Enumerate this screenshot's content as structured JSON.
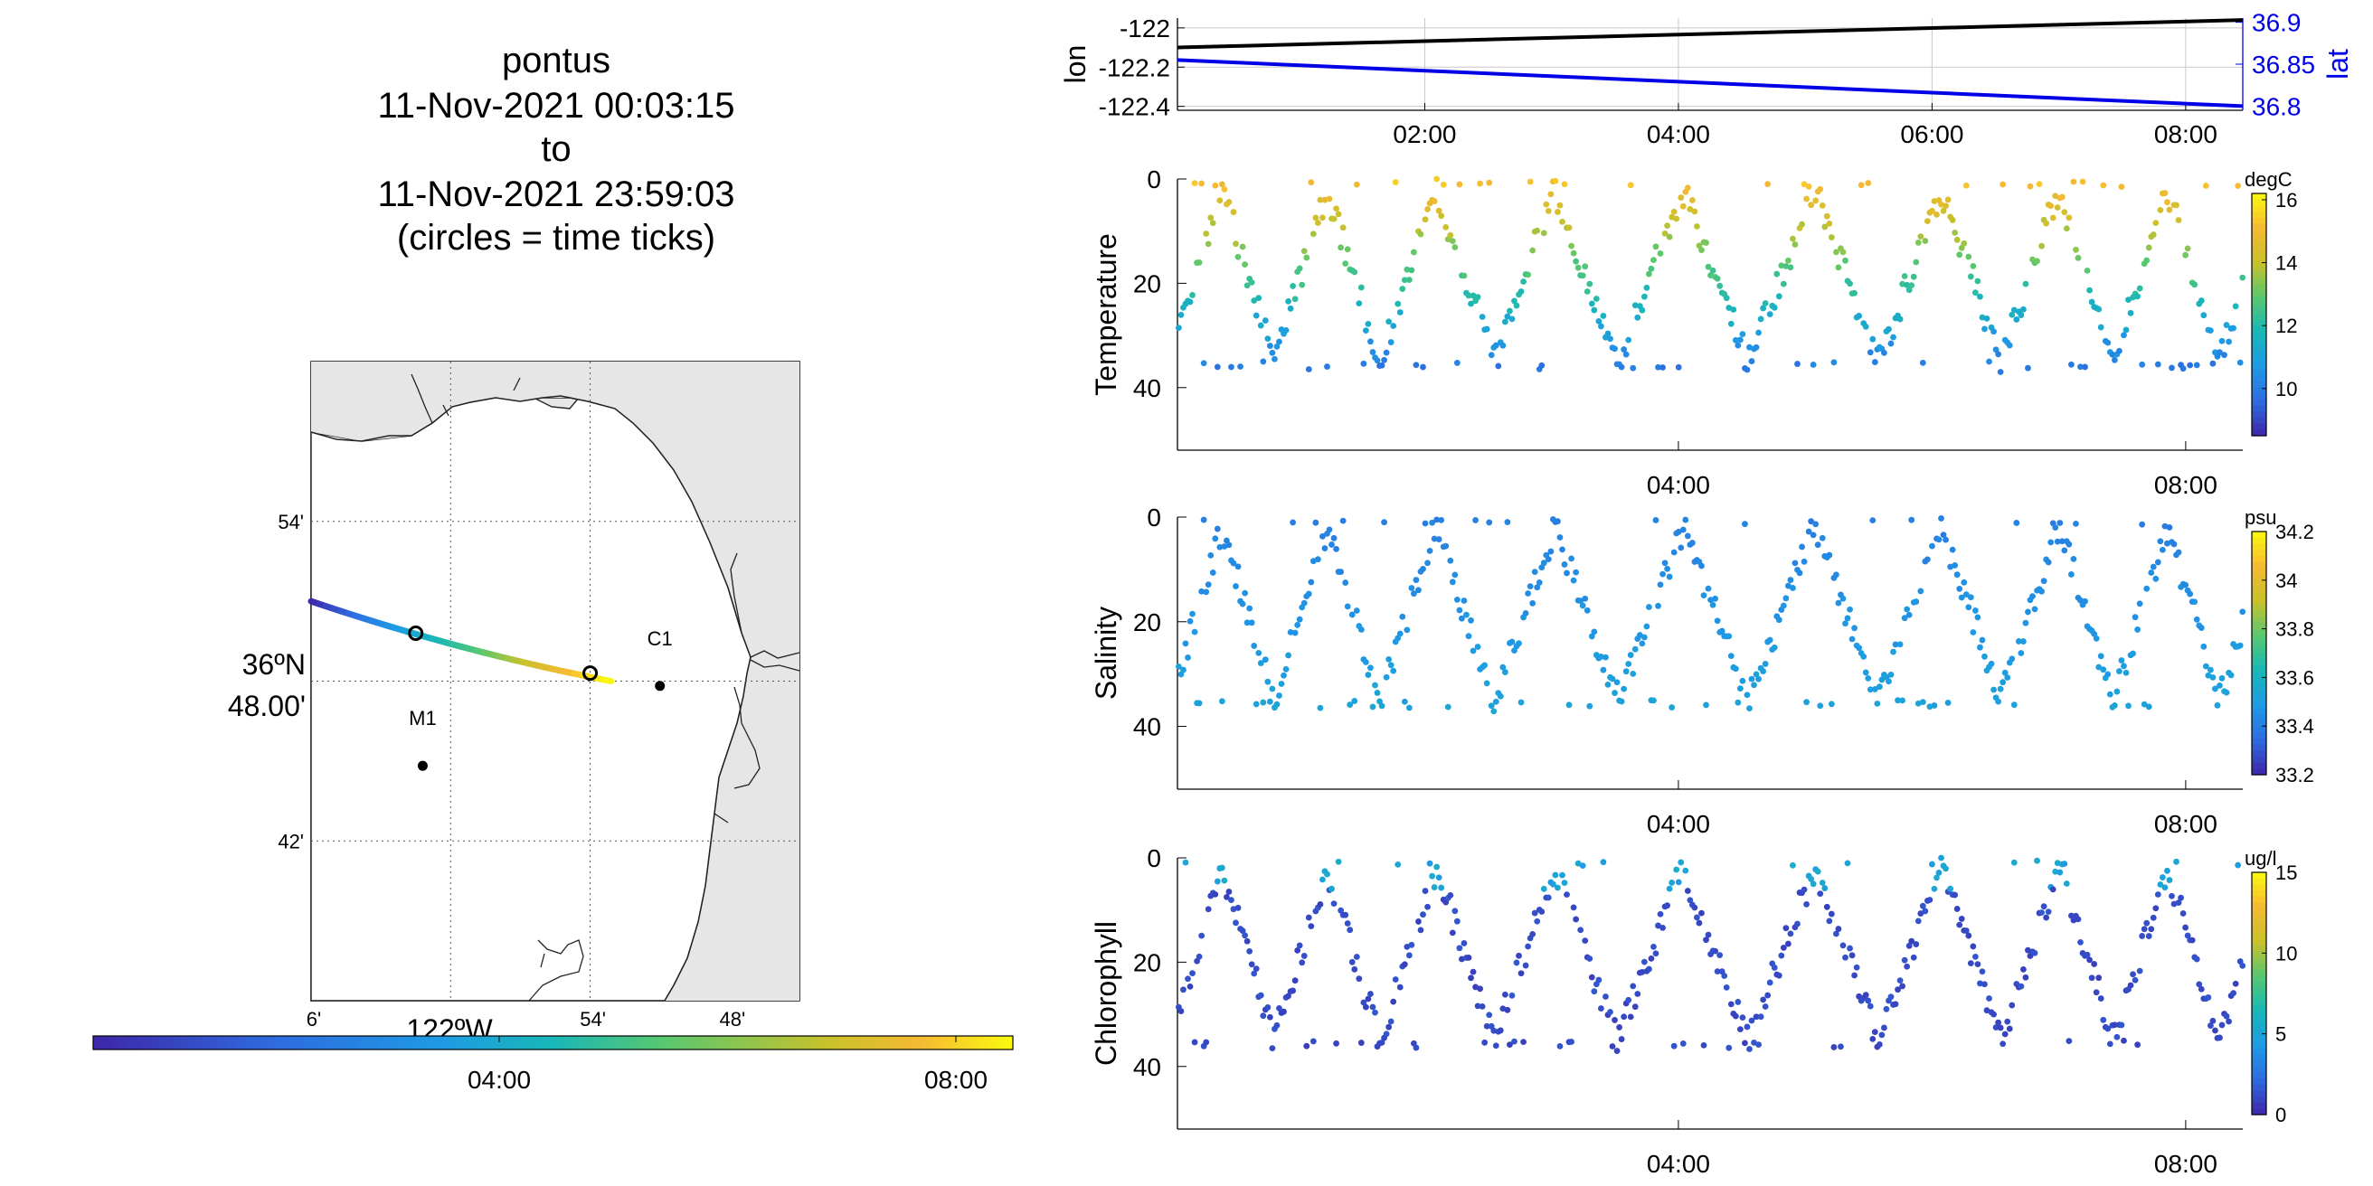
{
  "chart_data": [
    {
      "type": "map-track",
      "title_lines": [
        "pontus",
        "11-Nov-2021 00:03:15",
        "to",
        "11-Nov-2021 23:59:03",
        "(circles = time ticks)"
      ],
      "lat_label": [
        "36ºN",
        "48.00'"
      ],
      "lon_label": "122ºW",
      "lat_ticks": [
        {
          "lat": 36.9,
          "label": "54'"
        },
        {
          "lat": 36.7,
          "label": "42'"
        }
      ],
      "lon_ticks": [
        {
          "lon": -122.1,
          "label": "6'"
        },
        {
          "lon": -121.9,
          "label": "54'"
        },
        {
          "lon": -121.8,
          "label": "48'"
        }
      ],
      "lon_range": [
        -122.1,
        -121.75
      ],
      "lat_range": [
        36.6,
        37.0
      ],
      "grid_lon": [
        -122.0,
        -121.9
      ],
      "grid_lat": [
        36.9,
        36.8,
        36.7
      ],
      "track": {
        "start": [
          -122.1,
          36.85
        ],
        "end": [
          -121.885,
          36.8
        ]
      },
      "time_tick_points": [
        [
          -122.025,
          36.83
        ],
        [
          -121.9,
          36.805
        ]
      ],
      "stations": [
        {
          "name": "C1",
          "lon": -121.85,
          "lat": 36.797
        },
        {
          "name": "M1",
          "lon": -122.02,
          "lat": 36.747
        }
      ],
      "colorbar_ticks": [
        "04:00",
        "08:00"
      ]
    },
    {
      "type": "line",
      "ylabel_left": "lon",
      "ylabel_right": "lat",
      "x_ticks": [
        "02:00",
        "04:00",
        "06:00",
        "08:00"
      ],
      "x_range_hours": [
        0.05,
        8.45
      ],
      "left_ylim": [
        -122.42,
        -121.95
      ],
      "left_ticks": [
        {
          "v": -122,
          "label": "-122"
        },
        {
          "v": -122.2,
          "label": "-122.2"
        },
        {
          "v": -122.4,
          "label": "-122.4"
        }
      ],
      "right_ylim": [
        36.795,
        36.905
      ],
      "right_ticks": [
        {
          "v": 36.9,
          "label": "36.9"
        },
        {
          "v": 36.85,
          "label": "36.85"
        },
        {
          "v": 36.8,
          "label": "36.8"
        }
      ],
      "series": [
        {
          "name": "lon",
          "start": [
            0.05,
            -122.1
          ],
          "end": [
            8.45,
            -121.96
          ],
          "color": "#000000"
        },
        {
          "name": "lat",
          "start": [
            0.05,
            36.855
          ],
          "end": [
            8.45,
            36.8
          ],
          "color": "#0000e6"
        }
      ]
    },
    {
      "type": "scatter",
      "ylabel": "Temperature",
      "units": "degC",
      "x_ticks": [
        "04:00",
        "08:00"
      ],
      "x_range_hours": [
        0.05,
        8.45
      ],
      "ylim": [
        0,
        52
      ],
      "y_ticks": [
        0,
        20,
        40
      ],
      "color_range": [
        8.5,
        16.2
      ],
      "colorbar_ticks": [
        16,
        14,
        12,
        10
      ]
    },
    {
      "type": "scatter",
      "ylabel": "Salinity",
      "units": "psu",
      "x_ticks": [
        "04:00",
        "08:00"
      ],
      "x_range_hours": [
        0.05,
        8.45
      ],
      "ylim": [
        0,
        52
      ],
      "y_ticks": [
        0,
        20,
        40
      ],
      "color_range": [
        33.2,
        34.2
      ],
      "colorbar_ticks": [
        34.2,
        34,
        33.8,
        33.6,
        33.4,
        33.2
      ]
    },
    {
      "type": "scatter",
      "ylabel": "Chlorophyll",
      "units": "ug/l",
      "x_ticks": [
        "04:00",
        "08:00"
      ],
      "x_range_hours": [
        0.05,
        8.45
      ],
      "ylim": [
        0,
        52
      ],
      "y_ticks": [
        0,
        20,
        40
      ],
      "color_range": [
        0,
        15
      ],
      "colorbar_ticks": [
        15,
        10,
        5,
        0
      ]
    }
  ]
}
